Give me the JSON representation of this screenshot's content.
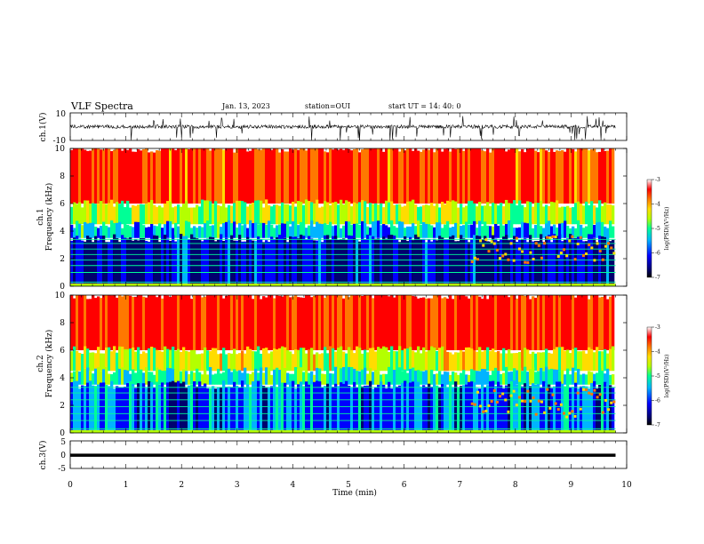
{
  "header": {
    "title": "VLF Spectra",
    "date": "Jan. 13, 2023",
    "station": "station=OUI",
    "start_ut": "start  UT =  14: 40: 0"
  },
  "chart_data": [
    {
      "type": "line",
      "panel": "ch1_waveform",
      "ylabel": "ch.1(V)",
      "ylim": [
        -10,
        10
      ],
      "yticks": [
        "10",
        "-10"
      ],
      "xlim": [
        0,
        10
      ],
      "description_values": {
        "baseline": 0,
        "spike_max": 8,
        "spike_min": -10
      }
    },
    {
      "type": "heatmap",
      "panel": "ch1_spectrogram",
      "ylabel_line1": "ch.1",
      "ylabel_line2": "Frequency (kHz)",
      "ylim": [
        0,
        10
      ],
      "yticks": [
        "0",
        "2",
        "4",
        "6",
        "8",
        "10"
      ],
      "xlim": [
        0,
        9.8
      ],
      "colorbar": {
        "label": "log(PSD)(V²/Hz)",
        "ticks": [
          "-3",
          "-4",
          "-5",
          "-6",
          "-7"
        ],
        "range": [
          -7,
          -3
        ]
      },
      "bands": [
        {
          "f_low": 6.0,
          "f_high": 10.0,
          "level": -3.4
        },
        {
          "f_low": 4.5,
          "f_high": 6.0,
          "level": -4.8
        },
        {
          "f_low": 3.5,
          "f_high": 4.5,
          "level": -5.6
        },
        {
          "f_low": 0.2,
          "f_high": 3.5,
          "level": -6.6
        }
      ],
      "lines_khz": [
        0.3,
        1.0,
        1.5,
        1.9,
        2.3,
        2.7,
        3.1,
        3.4
      ],
      "emission": {
        "t_start": 7.2,
        "t_end": 9.8,
        "f_low": 1.5,
        "f_high": 3.5
      }
    },
    {
      "type": "heatmap",
      "panel": "ch2_spectrogram",
      "ylabel_line1": "ch.2",
      "ylabel_line2": "Frequency (kHz)",
      "ylim": [
        0,
        10
      ],
      "yticks": [
        "0",
        "2",
        "4",
        "6",
        "8",
        "10"
      ],
      "xlim": [
        0,
        9.8
      ],
      "colorbar": {
        "label": "log(PSD)(V²/Hz)",
        "ticks": [
          "-3",
          "-4",
          "-5",
          "-6",
          "-7"
        ],
        "range": [
          -7,
          -3
        ]
      },
      "bands": [
        {
          "f_low": 6.0,
          "f_high": 10.0,
          "level": -3.2
        },
        {
          "f_low": 4.5,
          "f_high": 6.0,
          "level": -4.6
        },
        {
          "f_low": 3.5,
          "f_high": 4.5,
          "level": -5.3
        },
        {
          "f_low": 0.2,
          "f_high": 3.5,
          "level": -6.0
        }
      ],
      "lines_khz": [
        0.3,
        0.9,
        1.4,
        1.9,
        2.4,
        2.9,
        3.3
      ],
      "emission": {
        "t_start": 7.2,
        "t_end": 9.8,
        "f_low": 1.0,
        "f_high": 3.0
      }
    },
    {
      "type": "line",
      "panel": "ch3_waveform",
      "ylabel": "ch.3(V)",
      "ylim": [
        -5,
        5
      ],
      "yticks": [
        "5",
        "0",
        "-5"
      ],
      "xlim": [
        0,
        10
      ],
      "values_constant": -0.2
    }
  ],
  "x_axis": {
    "label": "Time (min)",
    "ticks": [
      "0",
      "1",
      "2",
      "3",
      "4",
      "5",
      "6",
      "7",
      "8",
      "9",
      "10"
    ],
    "range": [
      0,
      10
    ]
  },
  "colors": {
    "colormap": [
      "#00006e",
      "#0000ff",
      "#00b4ff",
      "#00ff96",
      "#b4ff00",
      "#ffdc00",
      "#ff7800",
      "#ff0000",
      "#ffffff"
    ]
  }
}
